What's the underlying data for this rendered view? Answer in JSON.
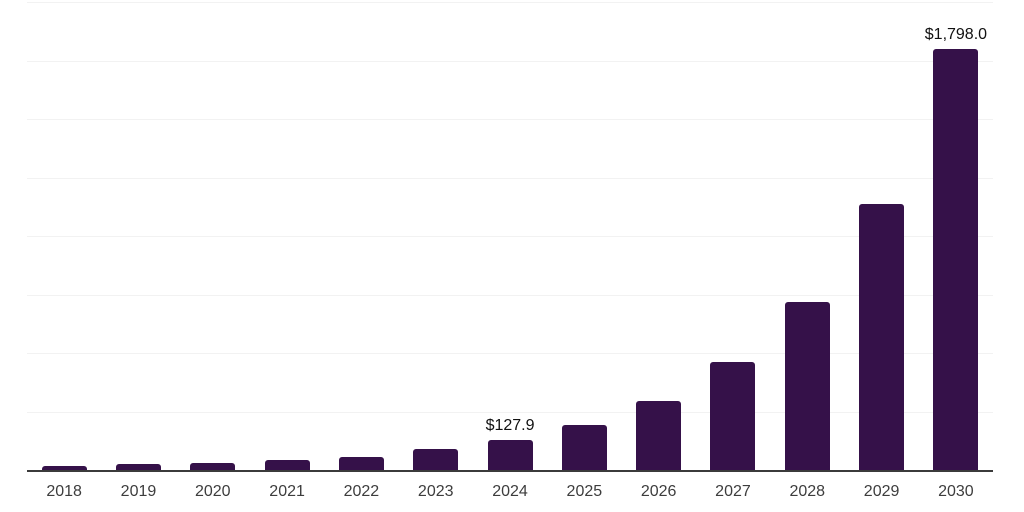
{
  "chart_data": {
    "type": "bar",
    "title": "",
    "xlabel": "",
    "ylabel": "",
    "categories": [
      "2018",
      "2019",
      "2020",
      "2021",
      "2022",
      "2023",
      "2024",
      "2025",
      "2026",
      "2027",
      "2028",
      "2029",
      "2030"
    ],
    "values": [
      16,
      27,
      32,
      41,
      55,
      88,
      127.9,
      194,
      296,
      461,
      716,
      1136,
      1798
    ],
    "data_labels": [
      "",
      "",
      "",
      "",
      "",
      "",
      "$127.9",
      "",
      "",
      "",
      "",
      "",
      "$1,798.0"
    ],
    "labeled_points": [
      {
        "category": "2024",
        "label": "$127.9"
      },
      {
        "category": "2030",
        "label": "$1,798.0"
      }
    ],
    "ylim": [
      0,
      2000
    ],
    "gridline_step": 250,
    "grid": "horizontal",
    "legend": "none",
    "colors": {
      "bar": "#351149",
      "axis_line": "#3b3b3b",
      "gridline": "#f2f2f2",
      "data_label": "#111111",
      "tick_label": "#3d3d3d",
      "background": "#ffffff"
    }
  }
}
